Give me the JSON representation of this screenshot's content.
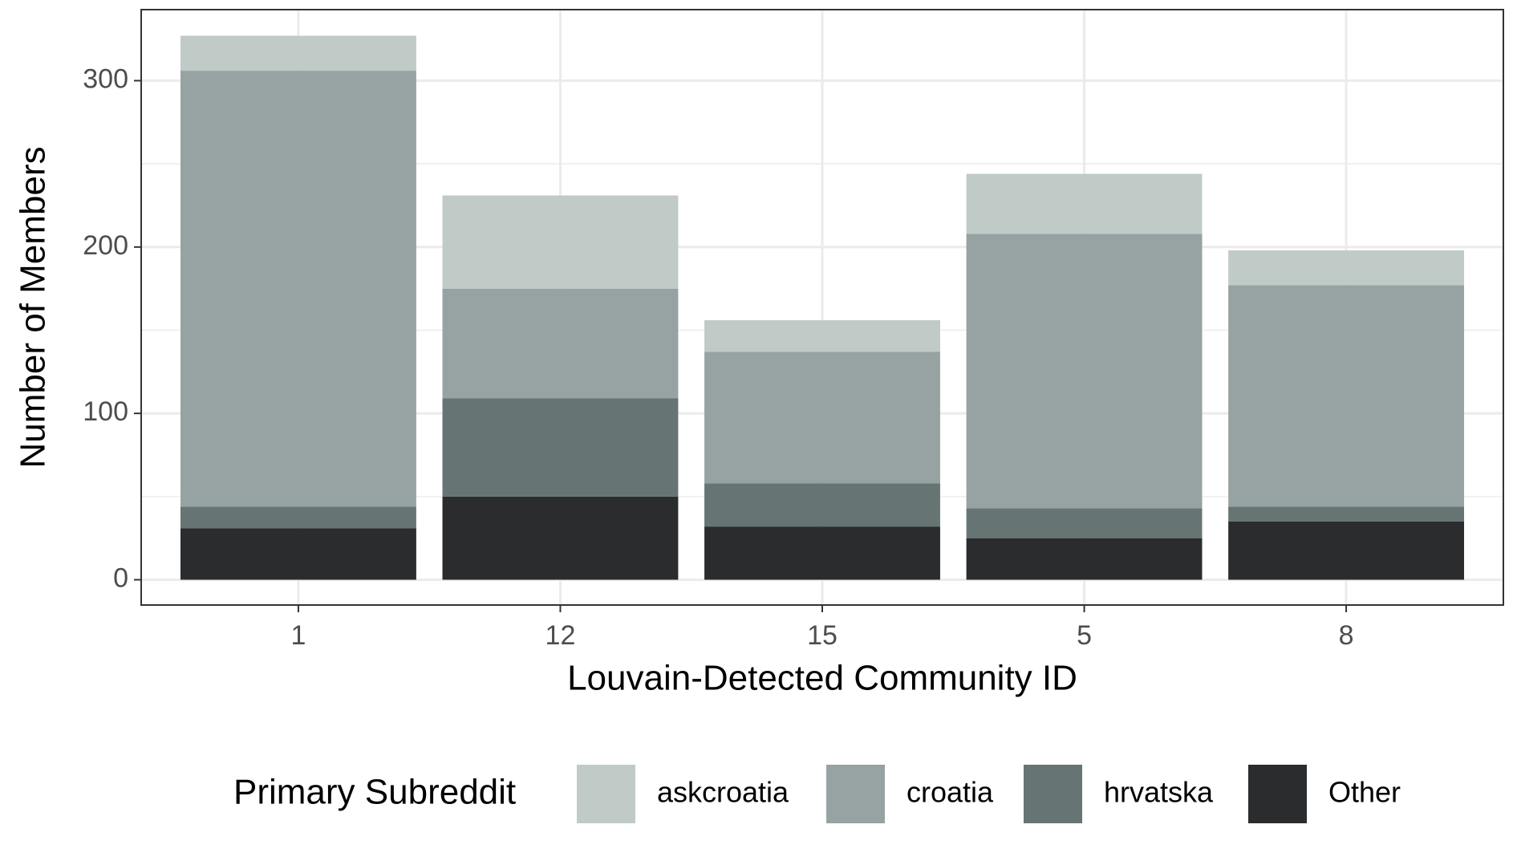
{
  "chart_data": {
    "type": "stacked_bar",
    "x_label": "Louvain-Detected Community ID",
    "y_label": "Number of Members",
    "legend_title": "Primary Subreddit",
    "categories": [
      "1",
      "12",
      "15",
      "5",
      "8"
    ],
    "series": [
      {
        "name": "askcroatia",
        "color": "#c0cbc8",
        "values": [
          21,
          56,
          19,
          36,
          21
        ]
      },
      {
        "name": "croatia",
        "color": "#97a3a2",
        "values": [
          262,
          66,
          79,
          165,
          133
        ]
      },
      {
        "name": "hrvatska",
        "color": "#667474",
        "values": [
          13,
          59,
          26,
          18,
          9
        ]
      },
      {
        "name": "Other",
        "color": "#2a2c2d",
        "values": [
          31,
          50,
          32,
          25,
          35
        ]
      }
    ],
    "ylim": [
      -15.2,
      342.7
    ],
    "yticks": [
      0,
      100,
      200,
      300
    ],
    "yminor": [
      50,
      150,
      250
    ],
    "grid": true,
    "legend": "bottom"
  }
}
